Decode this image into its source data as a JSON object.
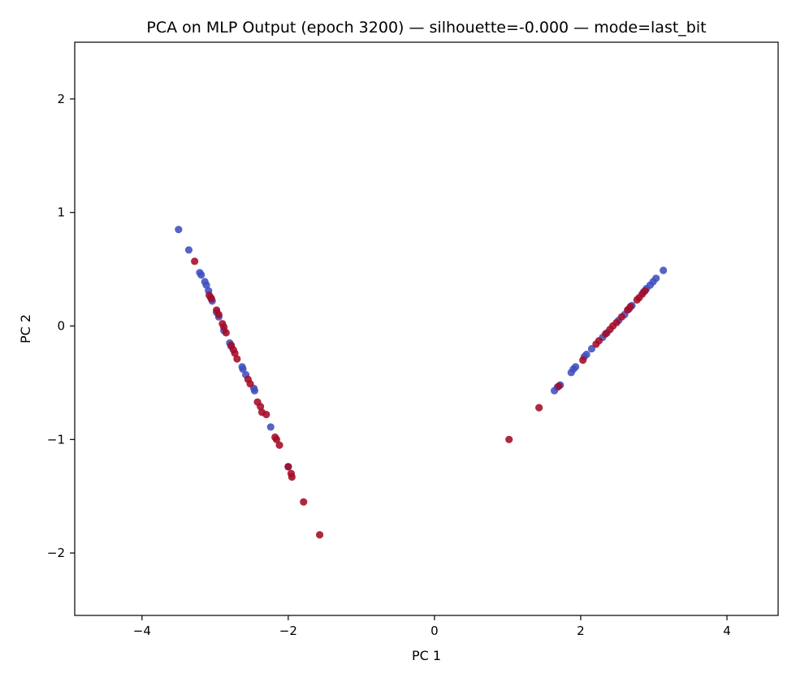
{
  "chart_data": {
    "type": "scatter",
    "title": "PCA on MLP Output (epoch 3200) — silhouette=-0.000 — mode=last_bit",
    "xlabel": "PC 1",
    "ylabel": "PC 2",
    "xlim": [
      -4.92,
      4.7
    ],
    "ylim": [
      -2.55,
      2.5
    ],
    "xticks": [
      -4,
      -2,
      0,
      2,
      4
    ],
    "xtick_labels": [
      "−4",
      "−2",
      "0",
      "2",
      "4"
    ],
    "yticks": [
      -2,
      -1,
      0,
      1,
      2
    ],
    "ytick_labels": [
      "−2",
      "−1",
      "0",
      "1",
      "2"
    ],
    "grid": false,
    "legend": "none",
    "colors": {
      "blue": "#3f4fbf",
      "red": "#a50a26"
    },
    "series": [
      {
        "color": "blue",
        "points": [
          [
            -3.5,
            0.85
          ],
          [
            -3.36,
            0.67
          ],
          [
            -3.21,
            0.47
          ],
          [
            -3.19,
            0.45
          ],
          [
            -3.14,
            0.39
          ],
          [
            -3.12,
            0.36
          ],
          [
            -3.09,
            0.31
          ],
          [
            -3.06,
            0.25
          ],
          [
            -3.04,
            0.22
          ],
          [
            -2.98,
            0.12
          ],
          [
            -2.95,
            0.08
          ],
          [
            -2.88,
            -0.04
          ],
          [
            -2.8,
            -0.15
          ],
          [
            -2.78,
            -0.18
          ],
          [
            -2.63,
            -0.36
          ],
          [
            -2.62,
            -0.38
          ],
          [
            -2.58,
            -0.43
          ],
          [
            -2.47,
            -0.55
          ],
          [
            -2.46,
            -0.57
          ],
          [
            -2.24,
            -0.89
          ],
          [
            -2.0,
            -1.24
          ],
          [
            1.64,
            -0.57
          ],
          [
            1.68,
            -0.54
          ],
          [
            1.72,
            -0.52
          ],
          [
            1.87,
            -0.41
          ],
          [
            1.9,
            -0.38
          ],
          [
            1.93,
            -0.36
          ],
          [
            2.05,
            -0.27
          ],
          [
            2.08,
            -0.25
          ],
          [
            2.15,
            -0.2
          ],
          [
            2.3,
            -0.1
          ],
          [
            2.36,
            -0.06
          ],
          [
            2.52,
            0.05
          ],
          [
            2.6,
            0.1
          ],
          [
            2.66,
            0.15
          ],
          [
            2.7,
            0.18
          ],
          [
            2.86,
            0.3
          ],
          [
            2.9,
            0.33
          ],
          [
            2.95,
            0.36
          ],
          [
            2.99,
            0.39
          ],
          [
            3.03,
            0.42
          ],
          [
            3.13,
            0.49
          ]
        ]
      },
      {
        "color": "red",
        "points": [
          [
            -3.28,
            0.57
          ],
          [
            -3.08,
            0.27
          ],
          [
            -3.05,
            0.24
          ],
          [
            -2.98,
            0.14
          ],
          [
            -2.95,
            0.1
          ],
          [
            -2.9,
            0.02
          ],
          [
            -2.88,
            -0.01
          ],
          [
            -2.85,
            -0.06
          ],
          [
            -2.78,
            -0.17
          ],
          [
            -2.75,
            -0.21
          ],
          [
            -2.73,
            -0.24
          ],
          [
            -2.7,
            -0.29
          ],
          [
            -2.55,
            -0.47
          ],
          [
            -2.52,
            -0.51
          ],
          [
            -2.42,
            -0.67
          ],
          [
            -2.38,
            -0.71
          ],
          [
            -2.36,
            -0.76
          ],
          [
            -2.3,
            -0.78
          ],
          [
            -2.18,
            -0.98
          ],
          [
            -2.16,
            -1.0
          ],
          [
            -2.12,
            -1.05
          ],
          [
            -2.0,
            -1.24
          ],
          [
            -1.96,
            -1.3
          ],
          [
            -1.95,
            -1.33
          ],
          [
            -1.79,
            -1.55
          ],
          [
            -1.57,
            -1.84
          ],
          [
            1.02,
            -1.0
          ],
          [
            1.43,
            -0.72
          ],
          [
            1.7,
            -0.53
          ],
          [
            2.03,
            -0.3
          ],
          [
            2.21,
            -0.16
          ],
          [
            2.25,
            -0.13
          ],
          [
            2.34,
            -0.07
          ],
          [
            2.4,
            -0.03
          ],
          [
            2.44,
            0.0
          ],
          [
            2.49,
            0.03
          ],
          [
            2.56,
            0.08
          ],
          [
            2.64,
            0.14
          ],
          [
            2.68,
            0.17
          ],
          [
            2.77,
            0.23
          ],
          [
            2.8,
            0.25
          ],
          [
            2.84,
            0.28
          ],
          [
            2.88,
            0.31
          ]
        ]
      }
    ]
  }
}
